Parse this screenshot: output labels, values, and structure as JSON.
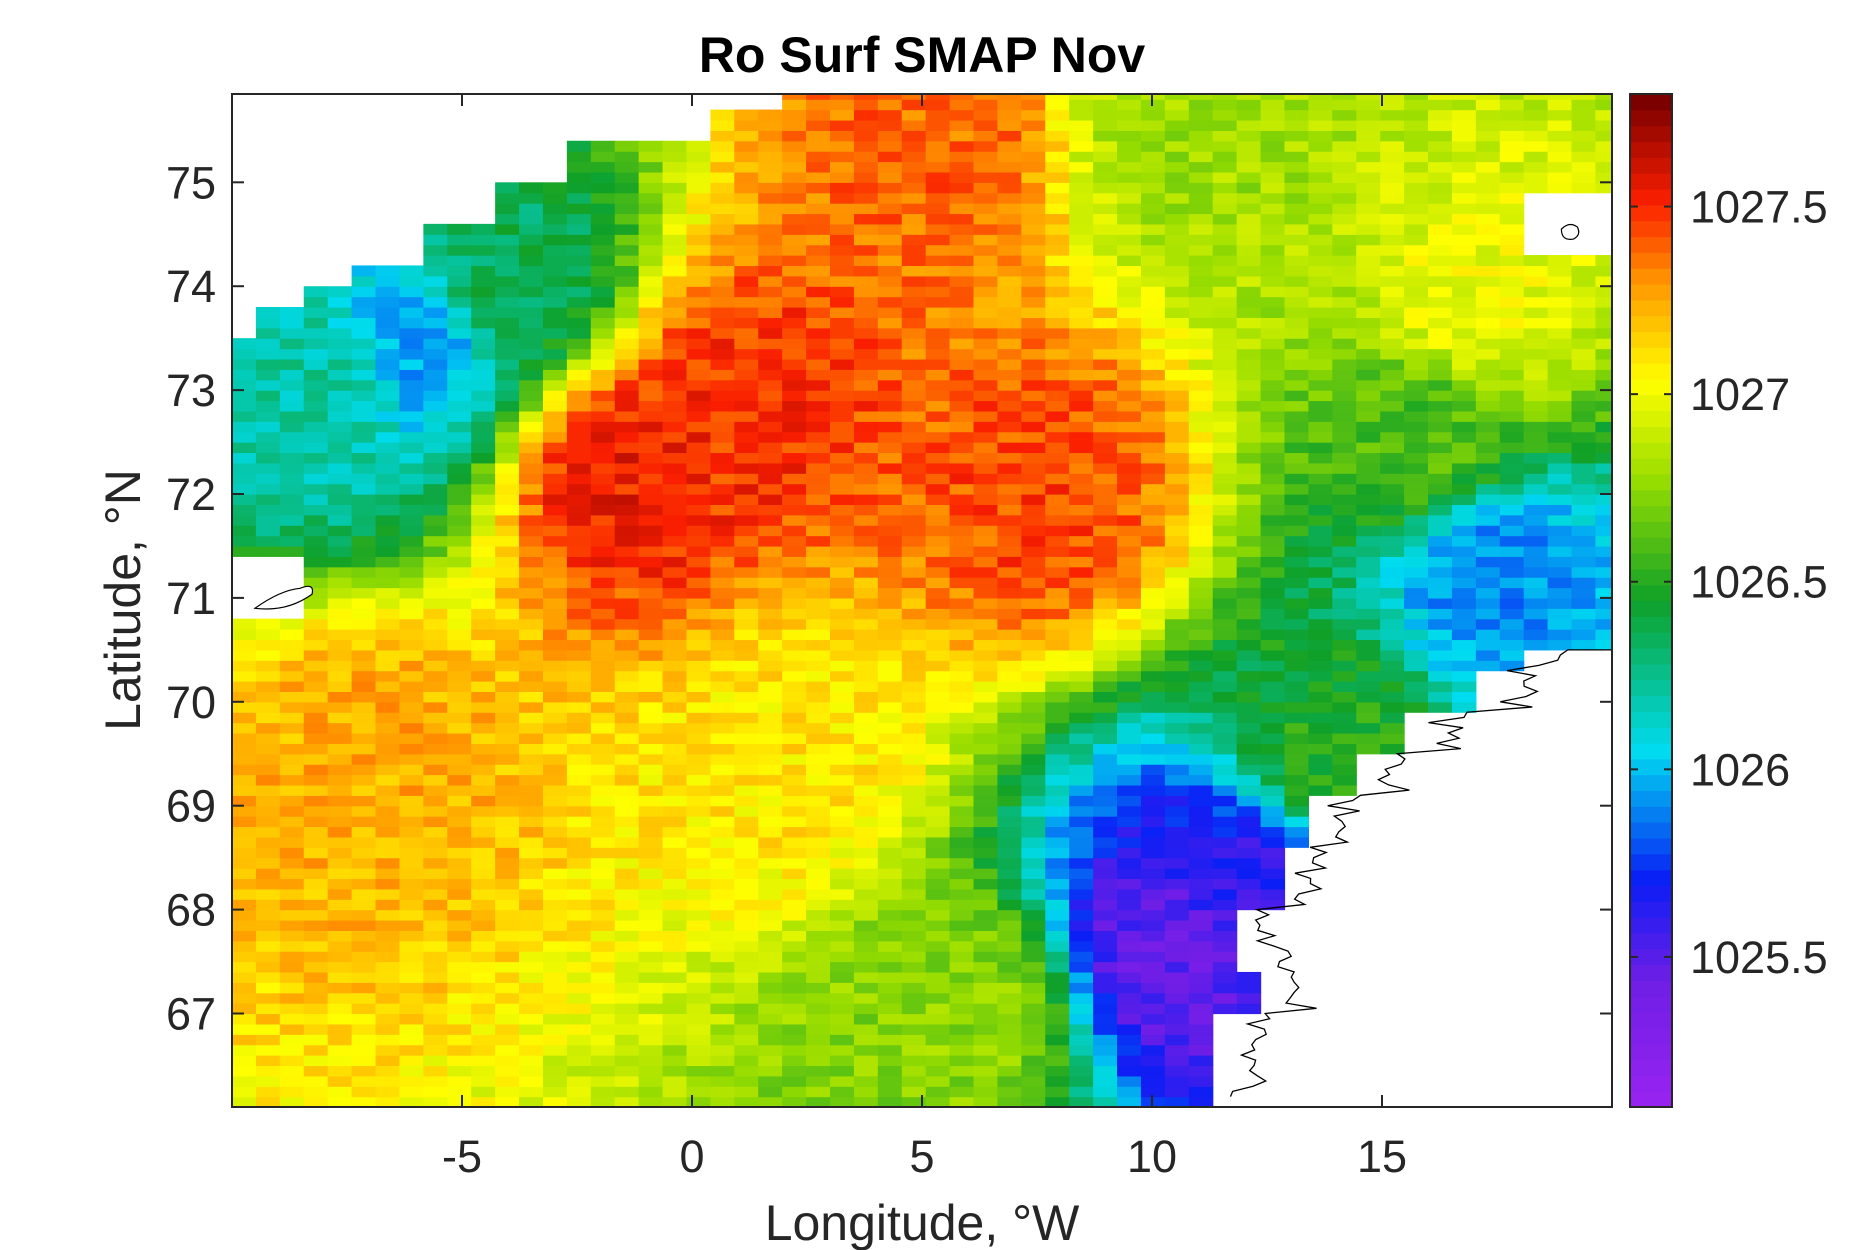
{
  "chart_data": {
    "type": "heatmap",
    "title": "Ro Surf SMAP Nov",
    "xlabel": "Longitude, °W",
    "ylabel": "Latitude, °N",
    "xlim": [
      -10,
      20
    ],
    "ylim": [
      66.1,
      75.85
    ],
    "xticks": [
      -5,
      0,
      5,
      10,
      15
    ],
    "xtick_labels": [
      "-5",
      "0",
      "5",
      "10",
      "15"
    ],
    "yticks": [
      67,
      68,
      69,
      70,
      71,
      72,
      73,
      74,
      75
    ],
    "ytick_labels": [
      "67",
      "68",
      "69",
      "70",
      "71",
      "72",
      "73",
      "74",
      "75"
    ],
    "colorbar": {
      "range": [
        1025.1,
        1027.8
      ],
      "ticks": [
        1025.5,
        1026,
        1026.5,
        1027,
        1027.5
      ],
      "tick_labels": [
        "1025.5",
        "1026",
        "1026.5",
        "1027",
        "1027.5"
      ],
      "colormap": "jet-like (purple → blue → cyan → green → yellow → orange → red → dark red)"
    },
    "grid": false,
    "field_anchor_values": [
      {
        "lon": -1.5,
        "lat": 72.2,
        "value": 1027.55
      },
      {
        "lon": 1.0,
        "lat": 72.9,
        "value": 1027.5
      },
      {
        "lon": 7.5,
        "lat": 72.0,
        "value": 1027.45
      },
      {
        "lon": -7.0,
        "lat": 69.5,
        "value": 1027.25
      },
      {
        "lon": 2.0,
        "lat": 69.5,
        "value": 1027.1
      },
      {
        "lon": 6.0,
        "lat": 67.0,
        "value": 1026.75
      },
      {
        "lon": 10.5,
        "lat": 67.6,
        "value": 1025.45
      },
      {
        "lon": 12.0,
        "lat": 68.2,
        "value": 1025.6
      },
      {
        "lon": 14.0,
        "lat": 69.5,
        "value": 1026.5
      },
      {
        "lon": 17.5,
        "lat": 71.2,
        "value": 1025.9
      },
      {
        "lon": 16.0,
        "lat": 72.6,
        "value": 1026.6
      },
      {
        "lon": 17.0,
        "lat": 73.8,
        "value": 1027.0
      },
      {
        "lon": -8.0,
        "lat": 73.0,
        "value": 1026.2
      },
      {
        "lon": -6.0,
        "lat": 73.4,
        "value": 1025.95
      },
      {
        "lon": -4.0,
        "lat": 74.0,
        "value": 1026.35
      },
      {
        "lon": 5.0,
        "lat": 75.4,
        "value": 1027.4
      },
      {
        "lon": 11.0,
        "lat": 75.5,
        "value": 1026.8
      }
    ]
  }
}
